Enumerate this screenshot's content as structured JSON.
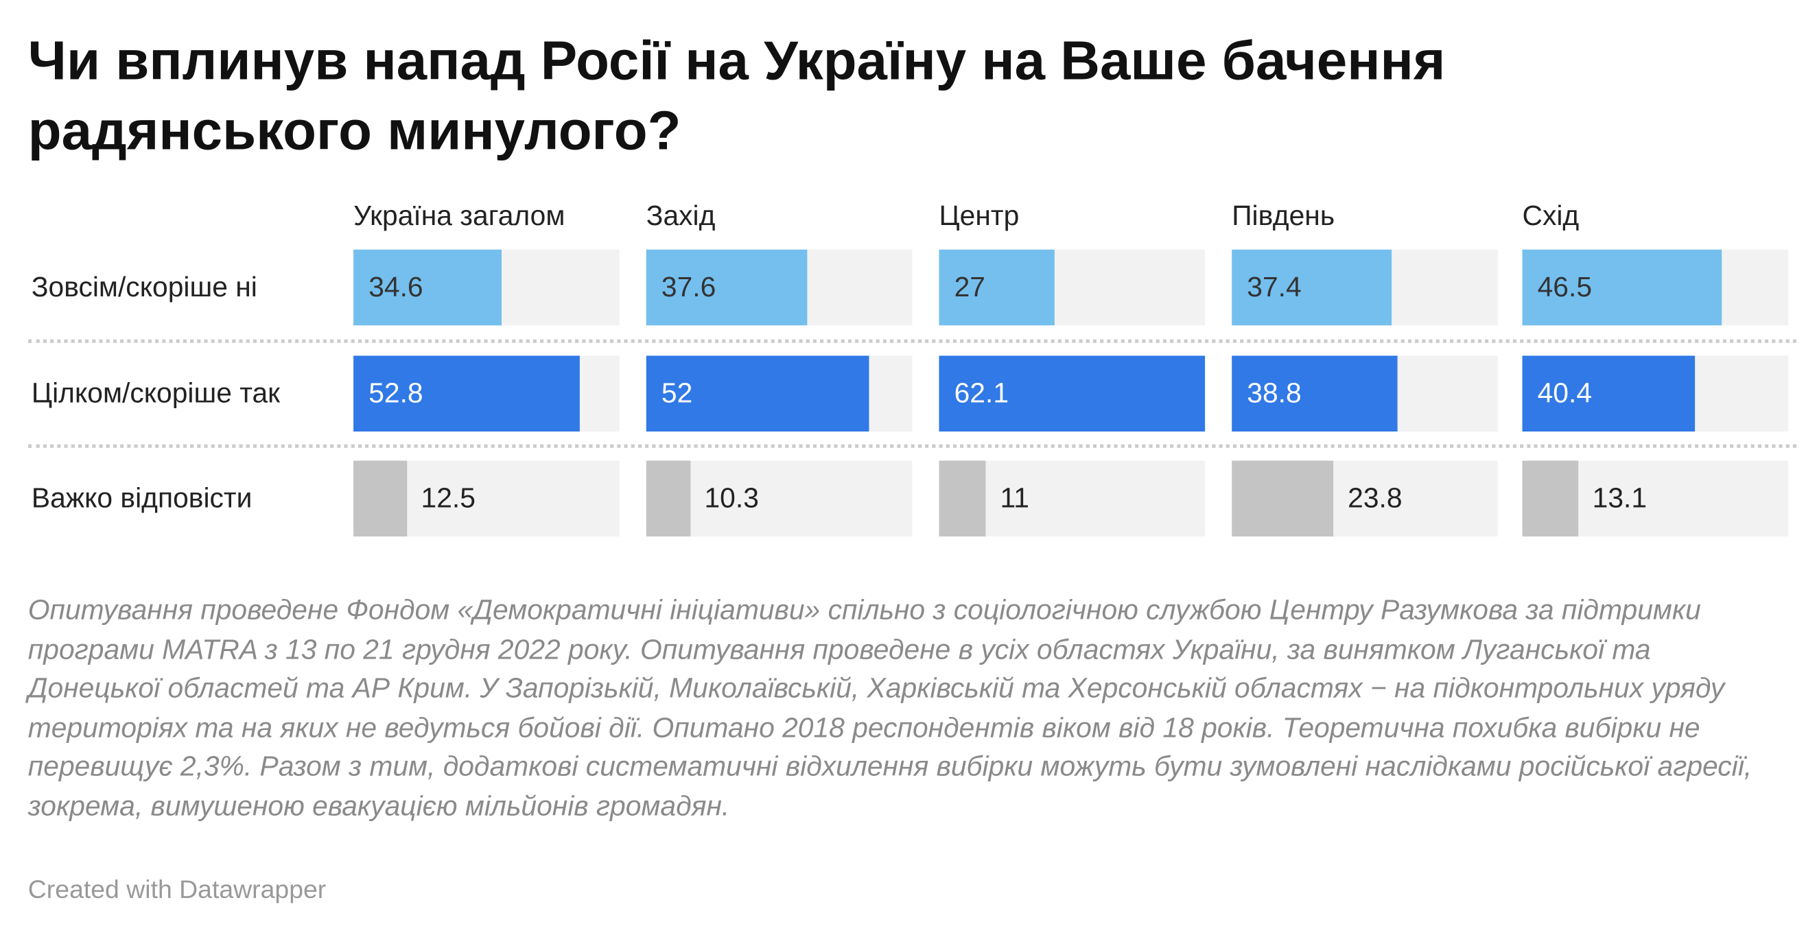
{
  "chart_data": {
    "type": "bar",
    "title": "Чи вплинув напад Росії на Україну на Ваше бачення радянського минулого?",
    "columns": [
      "Україна загалом",
      "Захід",
      "Центр",
      "Південь",
      "Схід"
    ],
    "rows": [
      "Зовсім/скоріше ні",
      "Цілком/скоріше так",
      "Важко відповісти"
    ],
    "values": [
      [
        34.6,
        37.6,
        27,
        37.4,
        46.5
      ],
      [
        52.8,
        52,
        62.1,
        38.8,
        40.4
      ],
      [
        12.5,
        10.3,
        11,
        23.8,
        13.1
      ]
    ],
    "value_labels": [
      [
        "34.6",
        "37.6",
        "27",
        "37.4",
        "46.5"
      ],
      [
        "52.8",
        "52",
        "62.1",
        "38.8",
        "40.4"
      ],
      [
        "12.5",
        "10.3",
        "11",
        "23.8",
        "13.1"
      ]
    ],
    "xlim": [
      0,
      62.1
    ],
    "row_colors": [
      "#74bfee",
      "#3079e6",
      "#c4c4c4"
    ],
    "track_color": "#f2f2f2",
    "label_colors": [
      "#333333",
      "#ffffff",
      "#222222"
    ]
  },
  "notes": "Опитування проведене Фондом «Демократичні ініціативи» спільно з соціологічною службою Центру Разумкова за підтримки програми MATRA з 13 по 21 грудня 2022 року. Опитування проведене в усіх областях України, за винятком Луганської та Донецької областей та АР Крим. У Запорізькій, Миколаївській, Харківській та Херсонській областях − на підконтрольних уряду територіях та на яких не ведуться бойові дії. Опитано 2018 респондентів віком від 18 років. Теоретична похибка вибірки не перевищує 2,3%. Разом з тим, додаткові систематичні відхилення вибірки можуть бути зумовлені наслідками російської агресії, зокрема, вимушеною евакуацією мільйонів громадян.",
  "credit": "Created with Datawrapper"
}
